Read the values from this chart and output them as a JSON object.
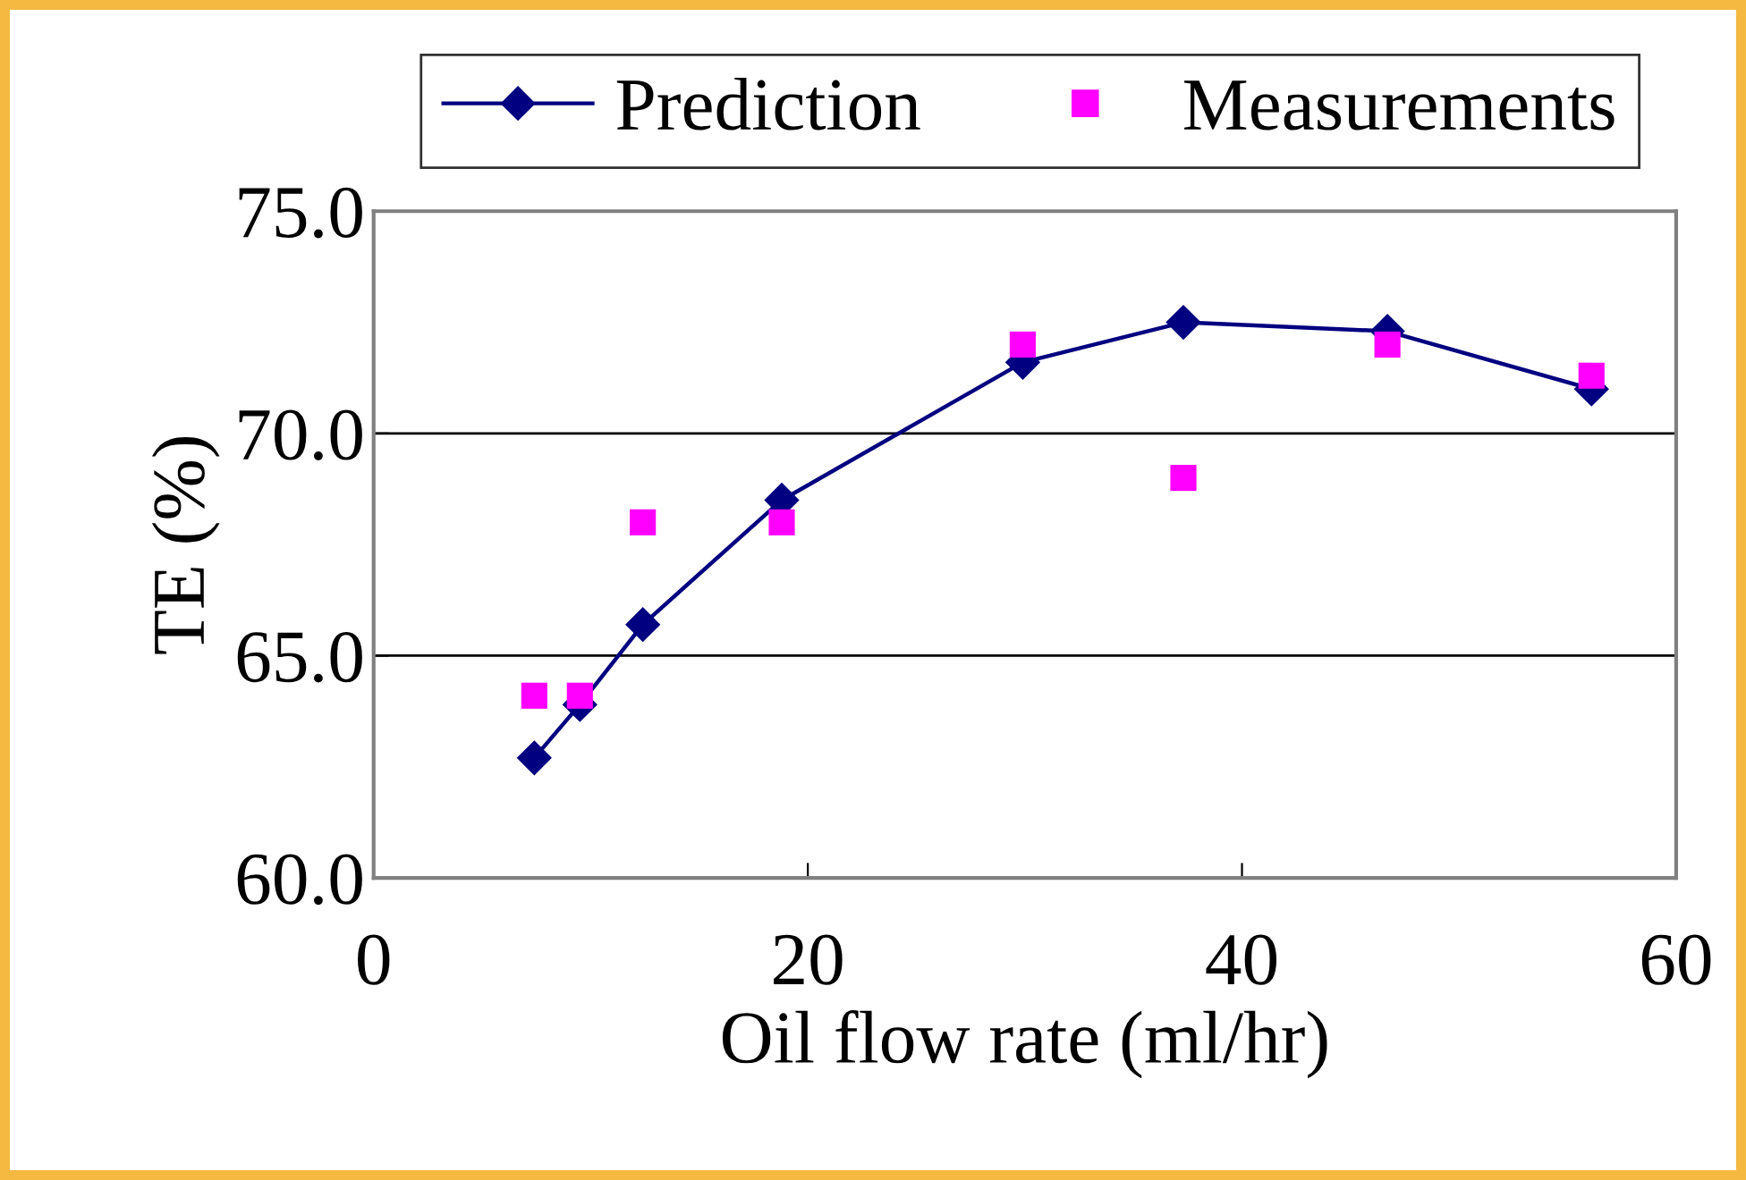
{
  "chart_data": {
    "type": "line",
    "xlabel": "Oil flow rate (ml/hr)",
    "ylabel": "TE (%)",
    "xlim": [
      0,
      60
    ],
    "xticks": [
      0,
      20,
      40,
      60
    ],
    "ylim": [
      60,
      75
    ],
    "yticks": [
      {
        "value": 60,
        "label": "60.0"
      },
      {
        "value": 65,
        "label": "65.0"
      },
      {
        "value": 70,
        "label": "70.0"
      },
      {
        "value": 75,
        "label": "75.0"
      }
    ],
    "grid": "y",
    "legend": "top",
    "series": [
      {
        "name": "Prediction",
        "marker": "diamond",
        "color": "#000080",
        "x": [
          7.4,
          9.5,
          12.4,
          18.8,
          29.9,
          37.3,
          46.7,
          56.1
        ],
        "values": [
          62.7,
          63.9,
          65.7,
          68.5,
          71.6,
          72.5,
          72.3,
          71.0
        ]
      },
      {
        "name": "Measurements",
        "type": "scatter",
        "marker": "square",
        "color": "#ff00ff",
        "x": [
          7.4,
          9.5,
          12.4,
          18.8,
          29.9,
          37.3,
          46.7,
          56.1
        ],
        "values": [
          64.1,
          64.1,
          68.0,
          68.0,
          72.0,
          69.0,
          72.0,
          71.3
        ]
      }
    ]
  }
}
